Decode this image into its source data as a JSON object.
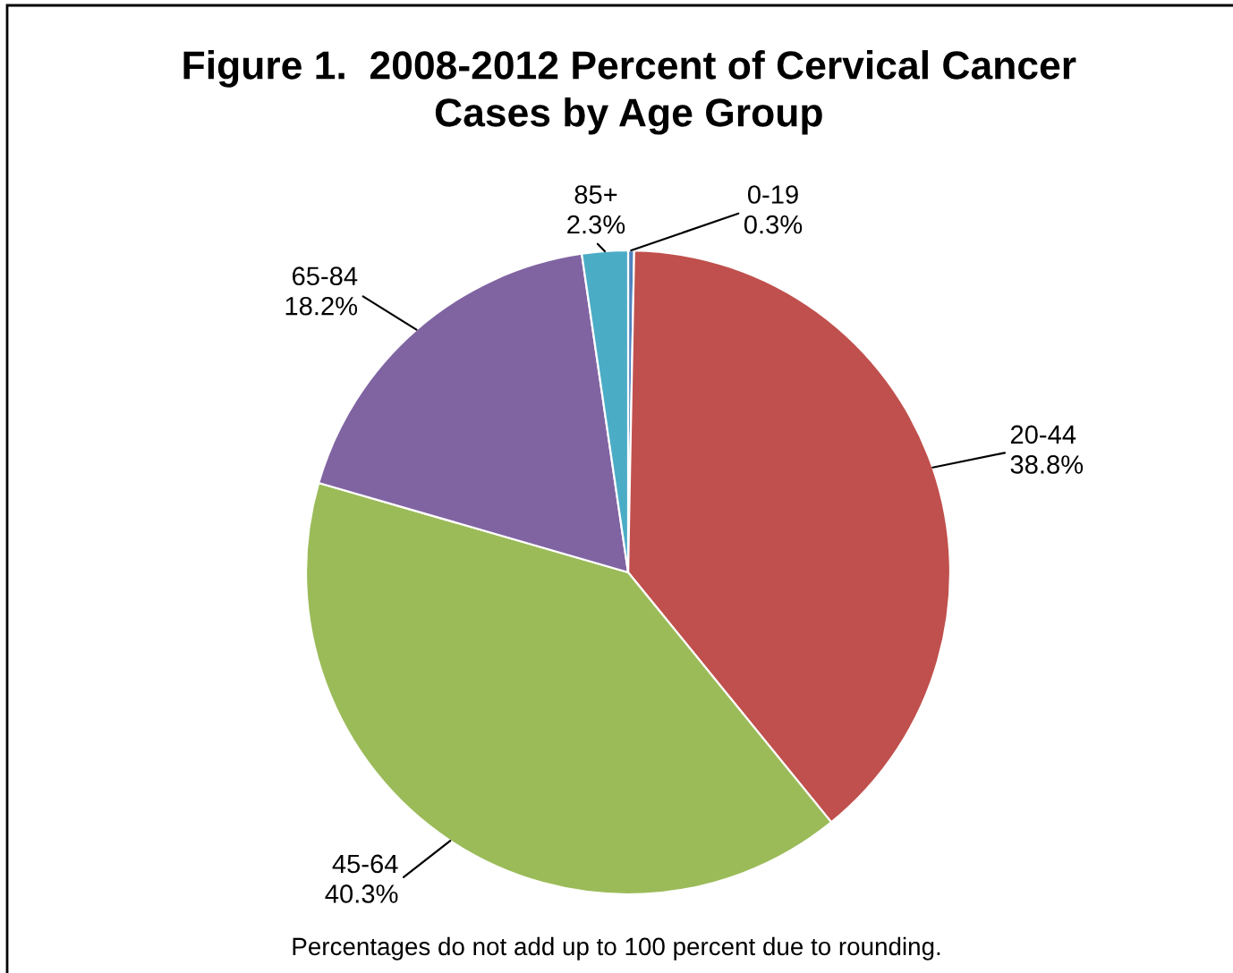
{
  "chart_data": {
    "type": "pie",
    "title": "Figure 1.  2008-2012 Percent of Cervical Cancer\nCases by Age Group",
    "categories": [
      "0-19",
      "20-44",
      "45-64",
      "65-84",
      "85+"
    ],
    "values": [
      0.3,
      38.8,
      40.3,
      18.2,
      2.3
    ],
    "value_labels": [
      "0.3%",
      "38.8%",
      "40.3%",
      "18.2%",
      "2.3%"
    ],
    "colors": [
      "#4f81bd",
      "#c0504d",
      "#9bbb59",
      "#8064a2",
      "#4bacc6"
    ],
    "annotations": [
      "Percentages do not add up to 100 percent due to rounding."
    ]
  }
}
